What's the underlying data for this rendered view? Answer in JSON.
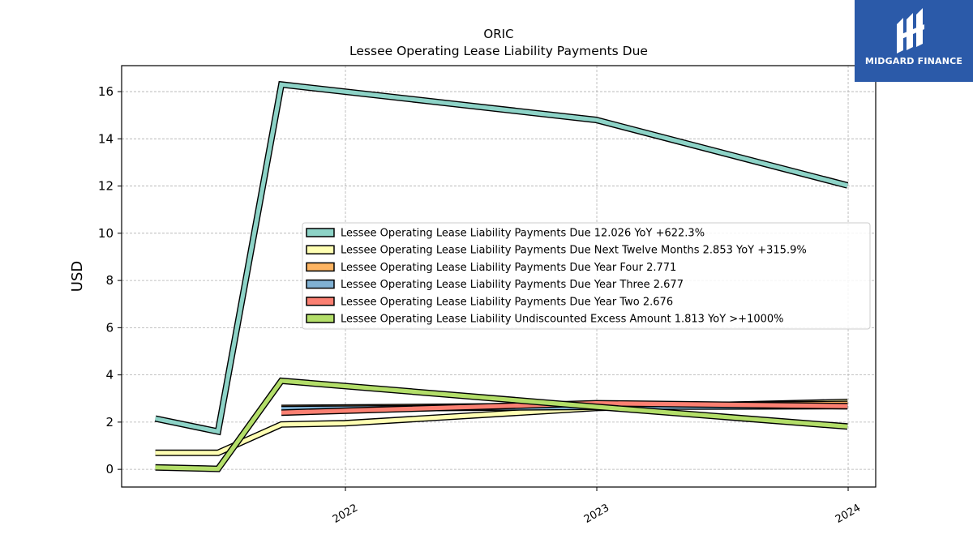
{
  "logo": {
    "text": "MIDGARD FINANCE",
    "background_color": "#2b5aa9"
  },
  "chart_data": {
    "type": "line",
    "title": "ORIC",
    "subtitle": "Lessee Operating Lease Liability Payments Due",
    "xlabel": "",
    "ylabel": "USD",
    "x_tick_labels": [
      "2022",
      "2023",
      "2024"
    ],
    "y_tick_labels": [
      "0",
      "2",
      "4",
      "6",
      "8",
      "10",
      "12",
      "14",
      "16"
    ],
    "xlim": [
      "2021-02-10",
      "2024-02-10"
    ],
    "ylim": [
      -0.75,
      17.1
    ],
    "grid": true,
    "legend_position": "center-right",
    "series": [
      {
        "name": "Lessee Operating Lease Liability Payments Due",
        "legend_label": "Lessee Operating Lease Liability Payments Due  12.026 YoY +622.3%",
        "color": "#8dd3c7",
        "points": [
          [
            "2021-03-31",
            2.15
          ],
          [
            "2021-06-30",
            1.6
          ],
          [
            "2021-09-30",
            16.3
          ],
          [
            "2022-12-31",
            14.8
          ],
          [
            "2023-12-31",
            12.026
          ]
        ]
      },
      {
        "name": "Lessee Operating Lease Liability Payments Due Next Twelve Months",
        "legend_label": "Lessee Operating Lease Liability Payments Due Next Twelve Months  2.853 YoY +315.9%",
        "color": "#ffffb3",
        "points": [
          [
            "2021-03-31",
            0.7
          ],
          [
            "2021-06-30",
            0.7
          ],
          [
            "2021-09-30",
            1.9
          ],
          [
            "2021-12-31",
            1.95
          ],
          [
            "2022-12-31",
            2.6
          ],
          [
            "2023-12-31",
            2.853
          ]
        ]
      },
      {
        "name": "Lessee Operating Lease Liability Payments Due Year Four",
        "legend_label": "Lessee Operating Lease Liability Payments Due Year Four  2.771",
        "color": "#fdb462",
        "points": [
          [
            "2021-09-30",
            2.6
          ],
          [
            "2022-12-31",
            2.7
          ],
          [
            "2023-12-31",
            2.771
          ]
        ]
      },
      {
        "name": "Lessee Operating Lease Liability Payments Due Year Three",
        "legend_label": "Lessee Operating Lease Liability Payments Due Year Three  2.677",
        "color": "#80b1d3",
        "points": [
          [
            "2021-09-30",
            2.55
          ],
          [
            "2022-12-31",
            2.65
          ],
          [
            "2023-12-31",
            2.677
          ]
        ]
      },
      {
        "name": "Lessee Operating Lease Liability Payments Due Year Two",
        "legend_label": "Lessee Operating Lease Liability Payments Due Year Two  2.676",
        "color": "#fb8072",
        "points": [
          [
            "2021-09-30",
            2.4
          ],
          [
            "2022-12-31",
            2.8
          ],
          [
            "2023-12-31",
            2.676
          ]
        ]
      },
      {
        "name": "Lessee Operating Lease Liability Undiscounted Excess Amount",
        "legend_label": "Lessee Operating Lease Liability Undiscounted Excess Amount  1.813 YoY >+1000%",
        "color": "#b3de69",
        "points": [
          [
            "2021-03-31",
            0.08
          ],
          [
            "2021-06-30",
            0.02
          ],
          [
            "2021-09-30",
            3.75
          ],
          [
            "2022-12-31",
            2.65
          ],
          [
            "2023-12-31",
            1.813
          ]
        ]
      }
    ]
  }
}
